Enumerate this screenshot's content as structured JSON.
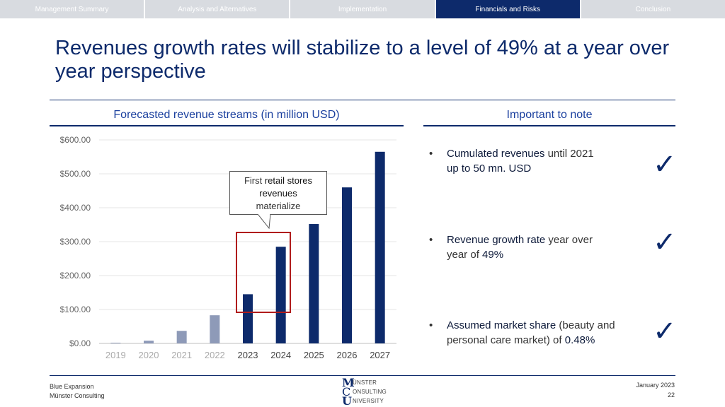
{
  "nav": {
    "tabs": [
      {
        "label": "Management Summary",
        "active": false
      },
      {
        "label": "Analysis and Alternatives",
        "active": false
      },
      {
        "label": "Implementation",
        "active": false
      },
      {
        "label": "Financials and Risks",
        "active": true
      },
      {
        "label": "Conclusion",
        "active": false
      }
    ]
  },
  "title": "Revenues growth rates will stabilize to a level of 49% at a year over year perspective",
  "left_section_title": "Forecasted revenue streams (in million USD)",
  "right_section_title": "Important to note",
  "callout": {
    "prefix": "First",
    "bold": "retail stores revenues",
    "suffix": "materialize"
  },
  "notes": [
    {
      "bold": "Cumulated revenues",
      "rest": " until 2021",
      "line2_bold": "up to 50 mn. USD",
      "line2_rest": "",
      "check": "✓"
    },
    {
      "bold": "Revenue growth rate",
      "rest": " year over",
      "line2_bold": "49%",
      "line2_rest": "year of ",
      "check": "✓"
    },
    {
      "bold": "Assumed market share",
      "rest": " (beauty and",
      "line2_bold": "0.48%",
      "line2_rest": "personal care market) of ",
      "check": "✓"
    }
  ],
  "bullet": "•",
  "footer": {
    "line1": "Blue Expansion",
    "line2": "Münster Consulting",
    "date": "January 2023",
    "page": "22",
    "logo_letter1": "M",
    "logo_letter2": "C",
    "logo_letter3": "U",
    "logo_word1": "ÜNSTER",
    "logo_word2": "ONSULTING",
    "logo_word3": "NIVERSITY"
  },
  "colors": {
    "navy": "#0d2a6b",
    "bar_dark": "#0d2a6b",
    "bar_light": "#8e9ab8",
    "highlight": "#b01c1c"
  },
  "chart_data": {
    "type": "bar",
    "categories": [
      "2019",
      "2020",
      "2021",
      "2022",
      "2023",
      "2024",
      "2025",
      "2026",
      "2027"
    ],
    "values": [
      2,
      8,
      37,
      83,
      145,
      285,
      352,
      460,
      565
    ],
    "bar_colors": [
      "light",
      "light",
      "light",
      "light",
      "dark",
      "dark",
      "dark",
      "dark",
      "dark"
    ],
    "yticks": [
      "$0.00",
      "$100.00",
      "$200.00",
      "$300.00",
      "$400.00",
      "$500.00",
      "$600.00"
    ],
    "ylim": [
      0,
      600
    ],
    "grid": true
  }
}
